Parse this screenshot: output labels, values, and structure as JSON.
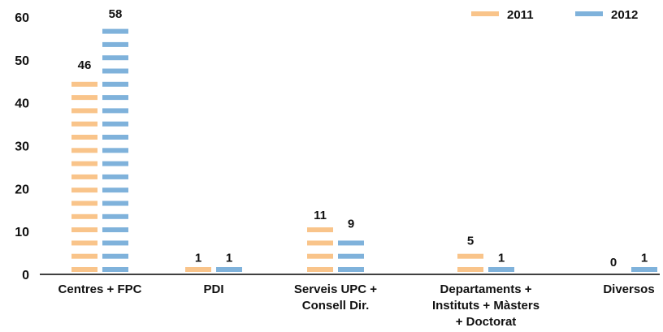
{
  "chart_data": {
    "type": "bar",
    "title": "",
    "xlabel": "",
    "ylabel": "",
    "ylim": [
      0,
      60
    ],
    "yticks": [
      0,
      10,
      20,
      30,
      40,
      50,
      60
    ],
    "grid": false,
    "legend_position": "top-right",
    "categories": [
      [
        "Centres + FPC"
      ],
      [
        "PDI"
      ],
      [
        "Serveis UPC +",
        "Consell Dir."
      ],
      [
        "Departaments +",
        "Instituts + Màsters",
        "+ Doctorat"
      ],
      [
        "Diversos"
      ]
    ],
    "series": [
      {
        "name": "2011",
        "color": "#F9C48A",
        "values": [
          46,
          1,
          11,
          5,
          0
        ]
      },
      {
        "name": "2012",
        "color": "#7FB2DB",
        "values": [
          58,
          1,
          9,
          1,
          1
        ]
      }
    ]
  }
}
